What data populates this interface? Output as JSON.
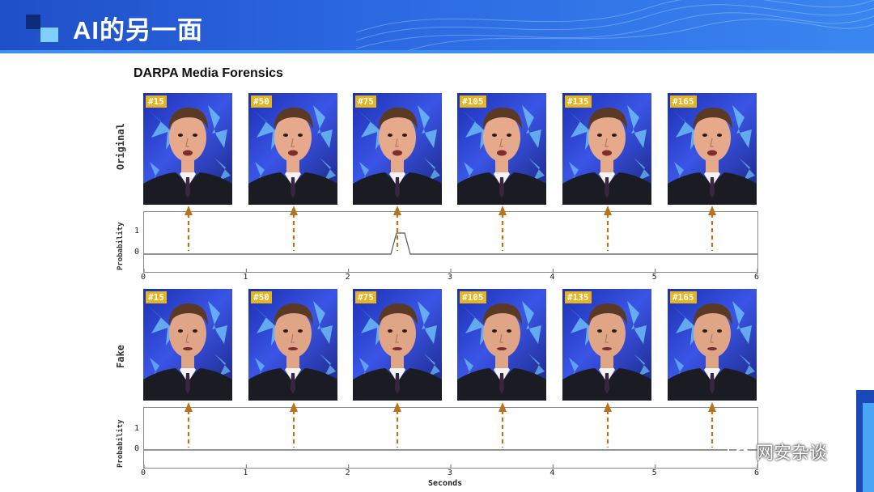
{
  "header": {
    "title": "AI的另一面"
  },
  "subtitle": "DARPA Media Forensics",
  "frame_tags": [
    "#15",
    "#50",
    "#75",
    "#105",
    "#135",
    "#165"
  ],
  "rows": [
    {
      "label": "Original",
      "plot_ylabel": "Probability",
      "yticks": [
        "1",
        "0"
      ]
    },
    {
      "label": "Fake",
      "plot_ylabel": "Probability",
      "yticks": [
        "1",
        "0"
      ]
    }
  ],
  "xticks": [
    "0",
    "1",
    "2",
    "3",
    "4",
    "5",
    "6"
  ],
  "xlabel": "Seconds",
  "watermark": "网安杂谈",
  "colors": {
    "header": "#2b67e0",
    "arrow": "#b8741a",
    "tag": "#e6b422"
  }
}
